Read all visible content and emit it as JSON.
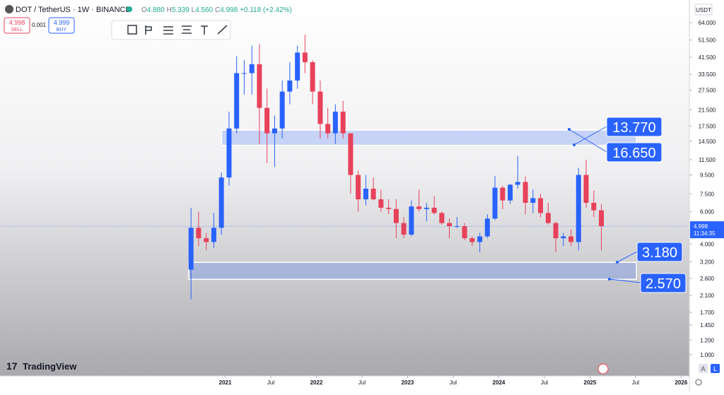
{
  "header": {
    "symbol": "DOT / TetherUS · 1W · BINANCE",
    "ohlc": [
      {
        "k": "O",
        "v": "4.880"
      },
      {
        "k": "H",
        "v": "5.339"
      },
      {
        "k": "L",
        "v": "4.560"
      },
      {
        "k": "C",
        "v": "4.998"
      }
    ],
    "change": "+0.118 (+2.42%)"
  },
  "trade": {
    "sell_price": "4.998",
    "sell_label": "SELL",
    "spread": "0.001",
    "buy_price": "4.999",
    "buy_label": "BUY"
  },
  "currency": "USDT",
  "brand": "TradingView",
  "scale_buttons": [
    "A",
    "L"
  ],
  "chart_data": {
    "type": "candlestick",
    "log_scale": true,
    "up_color": "#2962ff",
    "down_color": "#e8415a",
    "xlim": [
      2018.53,
      2026.09
    ],
    "ylim": [
      0.78,
      85
    ],
    "xticks": [
      2021,
      {
        "value": 2021.5,
        "label": "Jul"
      },
      2022,
      {
        "value": 2022.5,
        "label": "Jul"
      },
      2023,
      {
        "value": 2023.5,
        "label": "Jul"
      },
      2024,
      {
        "value": 2024.5,
        "label": "Jul"
      },
      2025,
      {
        "value": 2025.5,
        "label": "Jul"
      },
      2026
    ],
    "yticks": [
      {
        "value": 64,
        "label": "64.000"
      },
      {
        "value": 51.5,
        "label": "51.500"
      },
      {
        "value": 41.5,
        "label": "41.500"
      },
      {
        "value": 33.5,
        "label": "33.500"
      },
      {
        "value": 27.5,
        "label": "27.500"
      },
      {
        "value": 21.5,
        "label": "21.500"
      },
      {
        "value": 17.5,
        "label": "17.500"
      },
      {
        "value": 14.5,
        "label": "14.500"
      },
      {
        "value": 11.5,
        "label": "11.500"
      },
      {
        "value": 9.5,
        "label": "9.500"
      },
      {
        "value": 7.5,
        "label": "7.500"
      },
      {
        "value": 6,
        "label": "6.000"
      },
      {
        "value": 4,
        "label": "4.000"
      },
      {
        "value": 3.2,
        "label": "3.200"
      },
      {
        "value": 2.6,
        "label": "2.600"
      },
      {
        "value": 2.1,
        "label": "2.100"
      },
      {
        "value": 1.7,
        "label": "1.700"
      },
      {
        "value": 1.45,
        "label": "1.450"
      },
      {
        "value": 1.2,
        "label": "1.200"
      },
      {
        "value": 1,
        "label": "1.000"
      }
    ],
    "x": [
      2020.625,
      2020.708,
      2020.792,
      2020.875,
      2020.958,
      2021.042,
      2021.125,
      2021.208,
      2021.292,
      2021.375,
      2021.458,
      2021.542,
      2021.625,
      2021.708,
      2021.792,
      2021.875,
      2021.958,
      2022.042,
      2022.125,
      2022.208,
      2022.292,
      2022.375,
      2022.458,
      2022.542,
      2022.625,
      2022.708,
      2022.792,
      2022.875,
      2022.958,
      2023.042,
      2023.125,
      2023.208,
      2023.292,
      2023.375,
      2023.458,
      2023.542,
      2023.625,
      2023.708,
      2023.792,
      2023.875,
      2023.958,
      2024.042,
      2024.125,
      2024.208,
      2024.292,
      2024.375,
      2024.458,
      2024.542,
      2024.625,
      2024.708,
      2024.792,
      2024.875,
      2024.958,
      2025.042,
      2025.125
    ],
    "open": [
      2.9,
      4.9,
      4.3,
      4.1,
      4.9,
      9.2,
      17,
      34,
      34,
      38,
      22,
      16,
      17,
      27,
      31,
      44,
      39,
      27,
      18,
      16,
      21,
      16,
      9.5,
      7,
      8,
      7,
      6.3,
      6.2,
      5.2,
      4.5,
      6.4,
      6.2,
      6.3,
      5.9,
      5.2,
      5,
      5,
      4.3,
      4.1,
      4.4,
      5.5,
      8.1,
      6.9,
      8.4,
      8.7,
      6.7,
      7.1,
      5.9,
      5.2,
      4.3,
      4.4,
      4.1,
      9.5,
      6.7,
      6.1
    ],
    "high": [
      6.3,
      6,
      4.6,
      5.9,
      9.8,
      21,
      42,
      40,
      48,
      49,
      28,
      20,
      31,
      39,
      48,
      55,
      40,
      31,
      22,
      23,
      24,
      16,
      10,
      9.5,
      9.2,
      7.9,
      7,
      7,
      5.6,
      6.9,
      7.9,
      6.7,
      7.3,
      6,
      5.5,
      5.6,
      5.2,
      4.4,
      4.6,
      5.8,
      9.4,
      8.3,
      8.5,
      12,
      9.3,
      7.9,
      7.5,
      6.7,
      5.3,
      4.6,
      4.8,
      10.4,
      11.5,
      7.8,
      6.6
    ],
    "low": [
      2,
      3.9,
      3.7,
      3.8,
      4.5,
      8.3,
      16,
      26,
      26,
      14,
      11,
      10.5,
      15,
      23,
      28,
      34,
      23,
      15,
      15,
      14,
      15,
      7.5,
      6,
      6.5,
      6.9,
      6,
      5.8,
      4.3,
      4.3,
      4.4,
      6,
      5.3,
      5.8,
      5.1,
      4.3,
      4.9,
      4.2,
      3.9,
      3.6,
      4.3,
      5.4,
      6.2,
      6.6,
      8,
      5.8,
      5.9,
      5.6,
      5.1,
      3.6,
      3.9,
      3.9,
      3.7,
      6.3,
      5.6,
      3.7
    ],
    "close": [
      4.9,
      4.3,
      4.1,
      4.9,
      9.2,
      17,
      34,
      34,
      38,
      22,
      16,
      17,
      27,
      31,
      44,
      39,
      27,
      18,
      16,
      21,
      16,
      9.5,
      7,
      8,
      7,
      6.3,
      6.2,
      5.2,
      4.5,
      6.4,
      6.2,
      6.3,
      5.9,
      5.2,
      5,
      5,
      4.3,
      4.1,
      4.4,
      5.5,
      8.1,
      6.9,
      8.4,
      8.7,
      6.7,
      7.1,
      5.9,
      5.2,
      4.3,
      4.4,
      4.1,
      9.5,
      6.7,
      6.1,
      4.998
    ],
    "last": 4.998,
    "countdown": "11:34:35",
    "zones": [
      {
        "x": [
          2020.96,
          2025.51
        ],
        "range": [
          {
            "value": 13.77,
            "label": "13.770"
          },
          {
            "value": 16.65,
            "label": "16.650"
          }
        ]
      },
      {
        "x": [
          2020.6,
          2025.51
        ],
        "range": [
          {
            "value": 2.57,
            "label": "2.570"
          },
          {
            "value": 3.18,
            "label": "3.180"
          }
        ]
      }
    ]
  }
}
